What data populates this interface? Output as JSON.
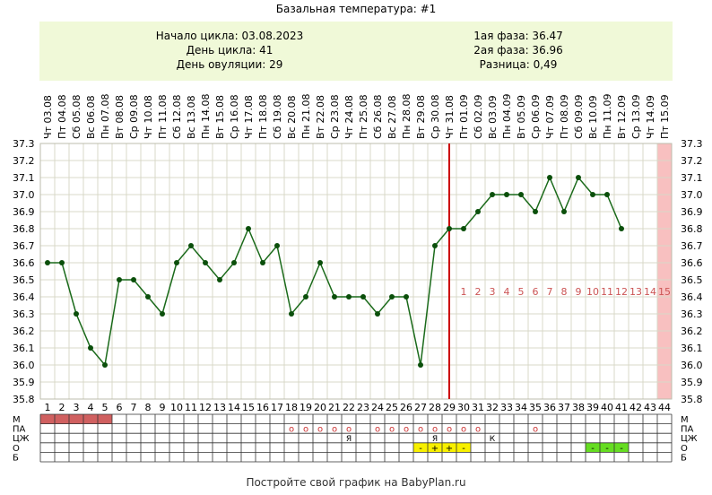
{
  "title": "Базальная температура: #1",
  "info": {
    "left": [
      "Начало цикла: 03.08.2023",
      "День цикла: 41",
      "День овуляции: 29"
    ],
    "right": [
      "1ая фаза: 36.47",
      "2ая фаза: 36.96",
      "Разница: 0,49"
    ]
  },
  "footer": "Постройте свой график на BabyPlan.ru",
  "colors": {
    "line": "#1a6a1a",
    "point": "#0b4f0b",
    "ovulation": "#cc0000",
    "grid": "#d8d8c8",
    "phase_numbers": "#cc5555",
    "highlight_column": "#f8c0c0",
    "menstruation": "#d06060",
    "o_yellow": "#f8f000",
    "o_green": "#66dd22"
  },
  "chart_data": {
    "type": "line",
    "ylim": [
      35.8,
      37.3
    ],
    "y_ticks": [
      "35.8",
      "35.9",
      "36.0",
      "36.1",
      "36.2",
      "36.3",
      "36.4",
      "36.5",
      "36.6",
      "36.7",
      "36.8",
      "36.9",
      "37.0",
      "37.1",
      "37.2",
      "37.3"
    ],
    "cycle_days": [
      1,
      2,
      3,
      4,
      5,
      6,
      7,
      8,
      9,
      10,
      11,
      12,
      13,
      14,
      15,
      16,
      17,
      18,
      19,
      20,
      21,
      22,
      23,
      24,
      25,
      26,
      27,
      28,
      29,
      30,
      31,
      32,
      33,
      34,
      35,
      36,
      37,
      38,
      39,
      40,
      41,
      42,
      43,
      44
    ],
    "date_labels": [
      "Чт 03.08",
      "Пт 04.08",
      "Сб 05.08",
      "Вс 06.08",
      "Пн 07.08",
      "Вт 08.08",
      "Ср 09.08",
      "Чт 10.08",
      "Пт 11.08",
      "Сб 12.08",
      "Вс 13.08",
      "Пн 14.08",
      "Вт 15.08",
      "Ср 16.08",
      "Чт 17.08",
      "Пт 18.08",
      "Сб 19.08",
      "Вс 20.08",
      "Пн 21.08",
      "Вт 22.08",
      "Ср 23.08",
      "Чт 24.08",
      "Пт 25.08",
      "Сб 26.08",
      "Вс 27.08",
      "Пн 28.08",
      "Вт 29.08",
      "Ср 30.08",
      "Чт 31.08",
      "Пт 01.09",
      "Сб 02.09",
      "Вс 03.09",
      "Пн 04.09",
      "Вт 05.09",
      "Ср 06.09",
      "Чт 07.09",
      "Пт 08.09",
      "Сб 09.09",
      "Вс 10.09",
      "Пн 11.09",
      "Вт 12.09",
      "Ср 13.09",
      "Чт 14.09",
      "Пт 15.09"
    ],
    "temperatures": [
      36.6,
      36.6,
      36.3,
      36.1,
      36.0,
      36.5,
      36.5,
      36.4,
      36.3,
      36.6,
      36.7,
      36.6,
      36.5,
      36.6,
      36.8,
      36.6,
      36.7,
      36.3,
      36.4,
      36.6,
      36.4,
      36.4,
      36.4,
      36.3,
      36.4,
      36.4,
      36.0,
      36.7,
      36.8,
      36.8,
      36.9,
      37.0,
      37.0,
      37.0,
      36.9,
      37.1,
      36.9,
      37.1,
      37.0,
      37.0,
      36.8
    ],
    "ovulation_day": 29,
    "highlight_day": 44,
    "phase_numbers": [
      "1",
      "2",
      "3",
      "4",
      "5",
      "6",
      "7",
      "8",
      "9",
      "10",
      "11",
      "12",
      "13",
      "14",
      "15"
    ],
    "phase_start_day": 30,
    "rows": {
      "labels": [
        "М",
        "ПА",
        "ЦЖ",
        "О",
        "Б"
      ],
      "menstruation_days": [
        1,
        2,
        3,
        4,
        5
      ],
      "pa_o_days": [
        18,
        19,
        20,
        21,
        22,
        24,
        25,
        26,
        27,
        28,
        29,
        30,
        31,
        35
      ],
      "pa_symbol": "o",
      "czh": [
        {
          "day": 22,
          "text": "Я"
        },
        {
          "day": 28,
          "text": "Я"
        },
        {
          "day": 32,
          "text": "К"
        }
      ],
      "o_cells": [
        {
          "day": 27,
          "text": "-",
          "color": "yellow"
        },
        {
          "day": 28,
          "text": "+",
          "color": "yellow"
        },
        {
          "day": 29,
          "text": "+",
          "color": "yellow"
        },
        {
          "day": 30,
          "text": "-",
          "color": "yellow"
        },
        {
          "day": 39,
          "text": "-",
          "color": "green"
        },
        {
          "day": 40,
          "text": "-",
          "color": "green"
        },
        {
          "day": 41,
          "text": "-",
          "color": "green"
        }
      ]
    }
  }
}
